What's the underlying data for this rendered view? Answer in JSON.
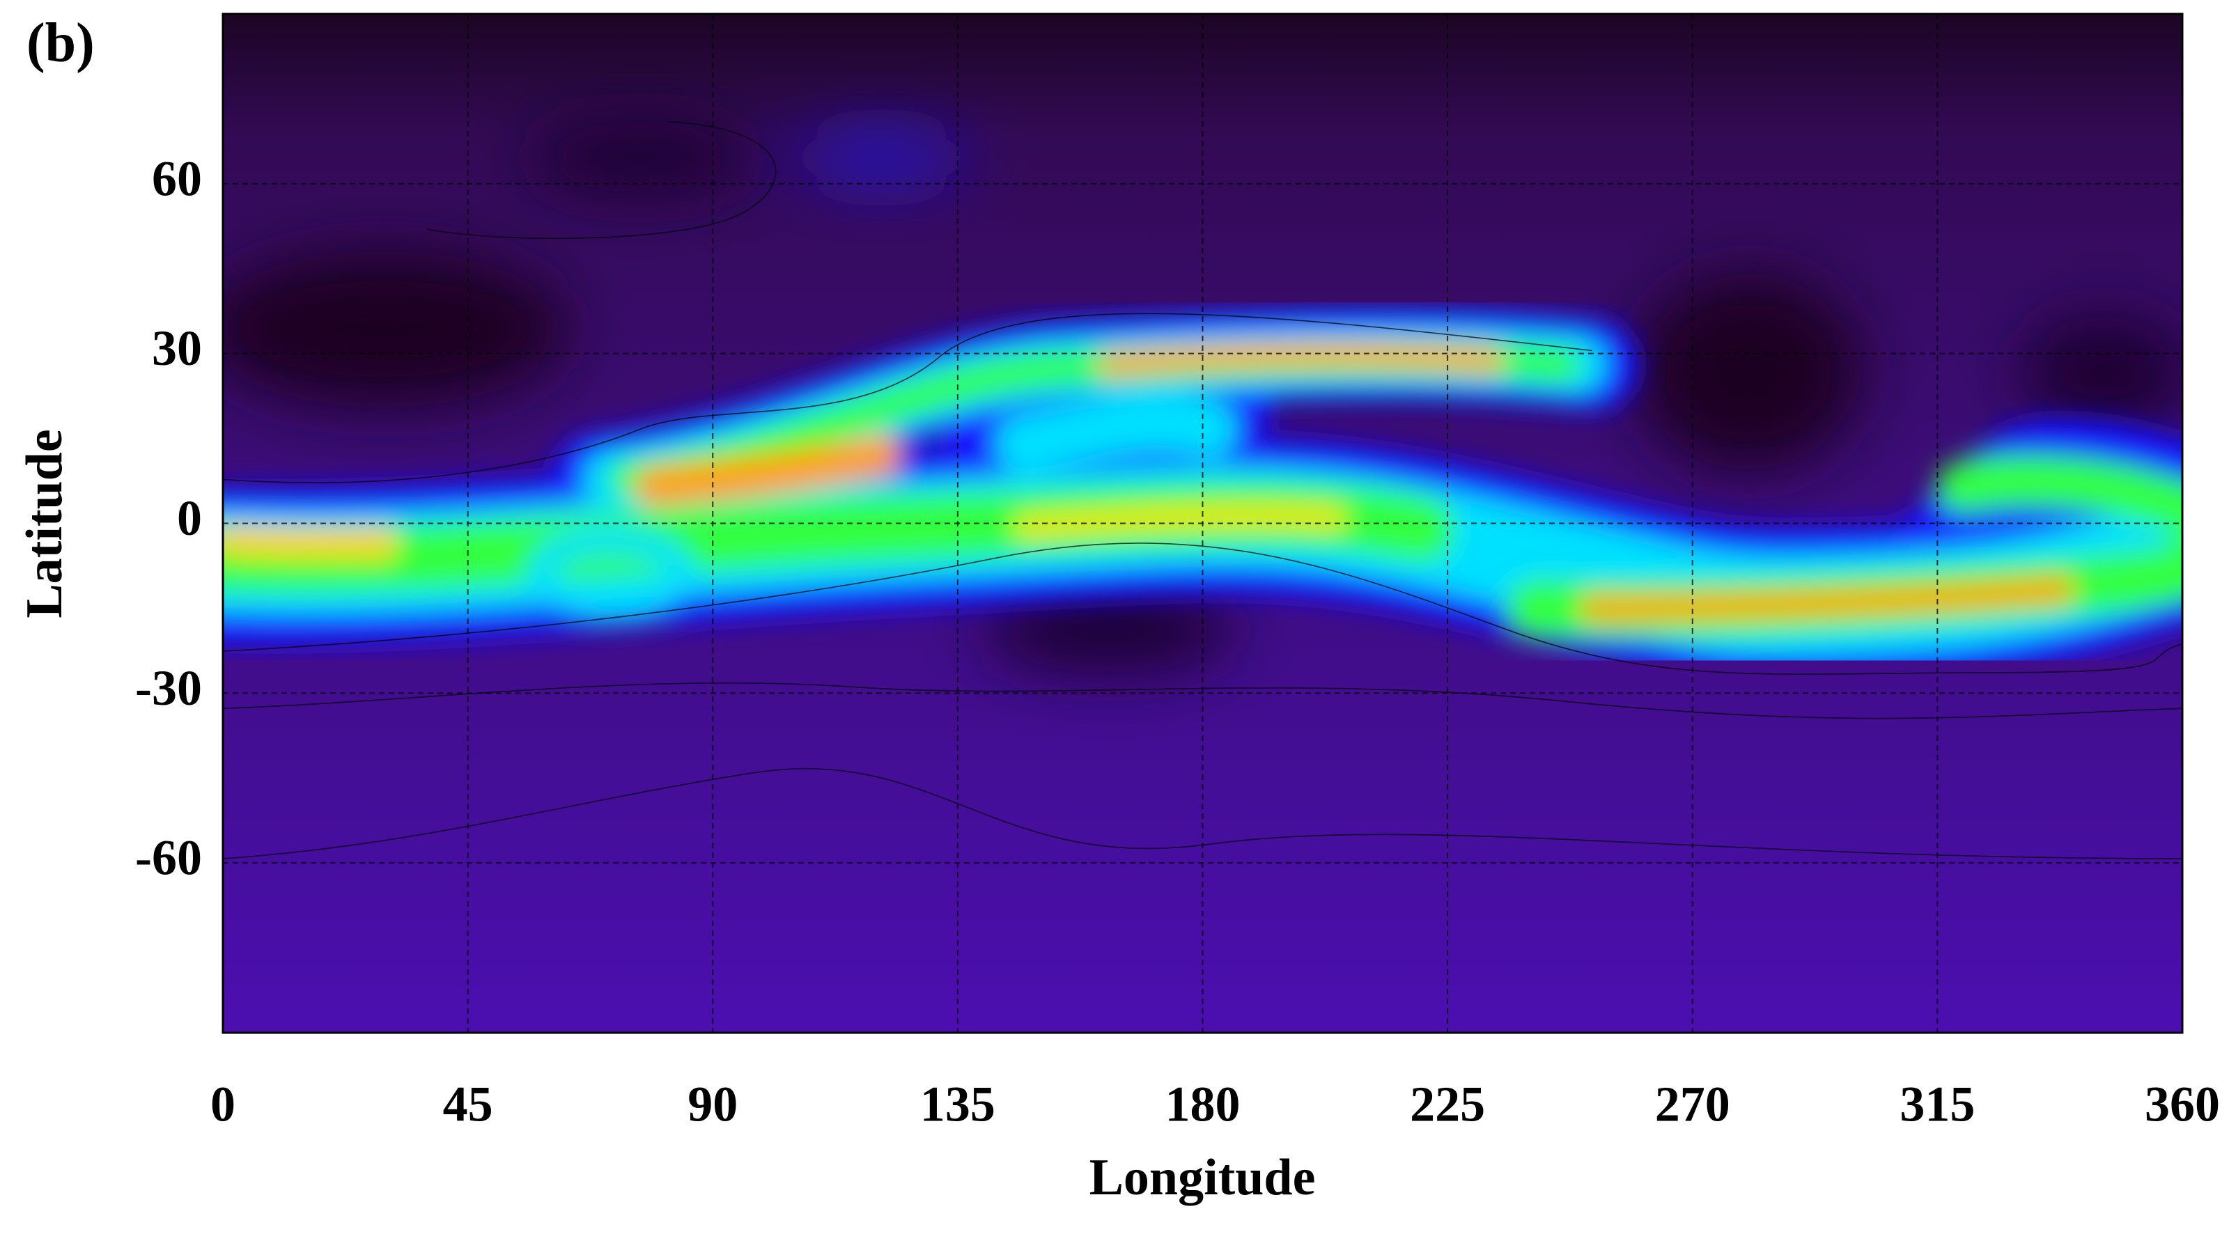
{
  "chart_data": {
    "type": "heatmap",
    "panel_label": "(b)",
    "xlabel": "Longitude",
    "ylabel": "Latitude",
    "xlim": [
      0,
      360
    ],
    "xticks": [
      0,
      45,
      90,
      135,
      180,
      225,
      270,
      315,
      360
    ],
    "ylim": [
      -90,
      90
    ],
    "yticks": [
      -60,
      -30,
      0,
      30,
      60
    ],
    "grid": true
  }
}
